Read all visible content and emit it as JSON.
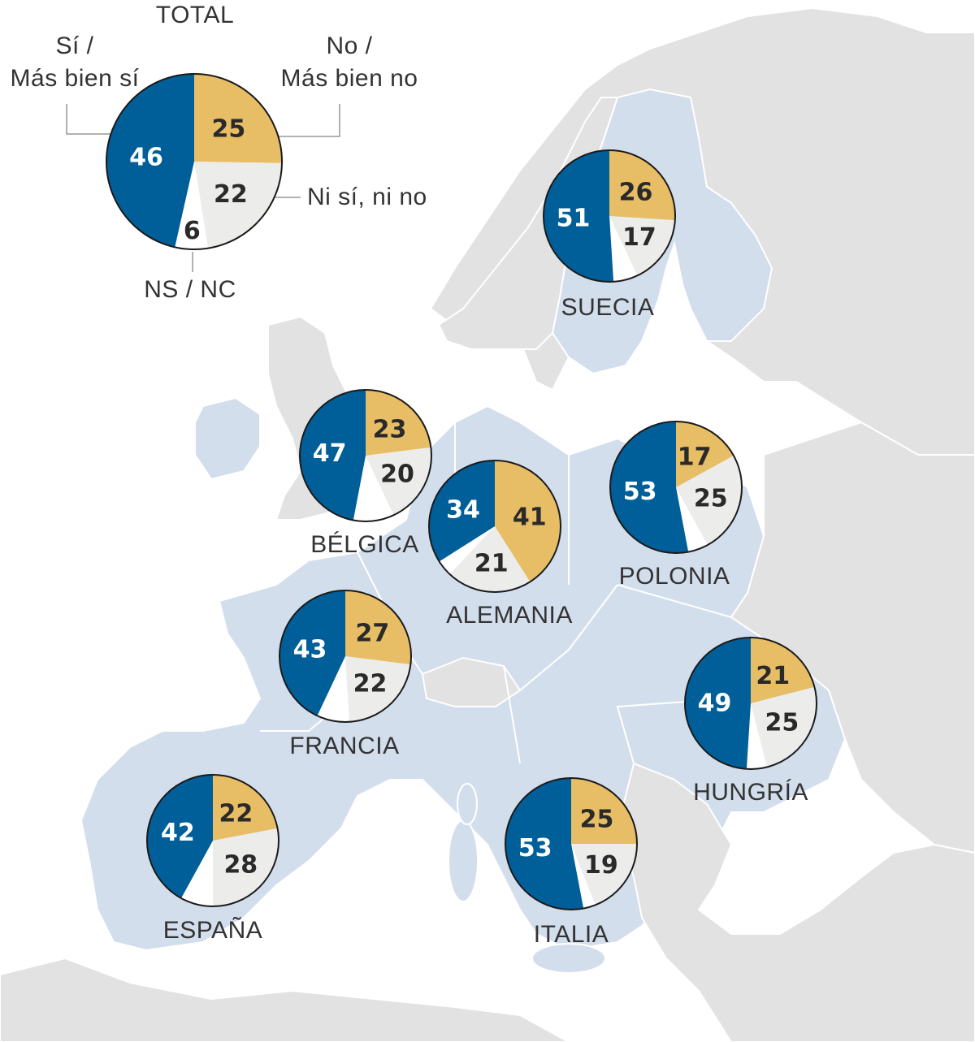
{
  "colors": {
    "si": "#005f98",
    "no": "#e7bd66",
    "ni": "#ececea",
    "ns": "#ffffff",
    "eu_land": "#d3deed",
    "other_land": "#e2e2e2",
    "sea": "#ffffff",
    "border": "#ffffff"
  },
  "legend": {
    "title": "TOTAL",
    "si": [
      "Sí  /",
      "Más bien sí"
    ],
    "no": [
      "No /",
      "Más bien no"
    ],
    "ni": "Ni sí, ni no",
    "ns": "NS / NC"
  },
  "chart_data": {
    "type": "pie",
    "categories": [
      "Sí / Más bien sí",
      "No / Más bien no",
      "Ni sí, ni no",
      "NS / NC"
    ],
    "countries": [
      {
        "name": "TOTAL",
        "values": [
          46,
          25,
          22,
          6
        ]
      },
      {
        "name": "SUECIA",
        "values": [
          51,
          26,
          17,
          6
        ]
      },
      {
        "name": "BÉLGICA",
        "values": [
          47,
          23,
          20,
          10
        ]
      },
      {
        "name": "ALEMANIA",
        "values": [
          34,
          41,
          21,
          4
        ]
      },
      {
        "name": "POLONIA",
        "values": [
          53,
          17,
          25,
          5
        ]
      },
      {
        "name": "FRANCIA",
        "values": [
          43,
          27,
          22,
          8
        ]
      },
      {
        "name": "HUNGRÍA",
        "values": [
          49,
          21,
          25,
          5
        ]
      },
      {
        "name": "ESPAÑA",
        "values": [
          42,
          22,
          28,
          8
        ]
      },
      {
        "name": "ITALIA",
        "values": [
          53,
          25,
          19,
          3
        ]
      }
    ]
  }
}
